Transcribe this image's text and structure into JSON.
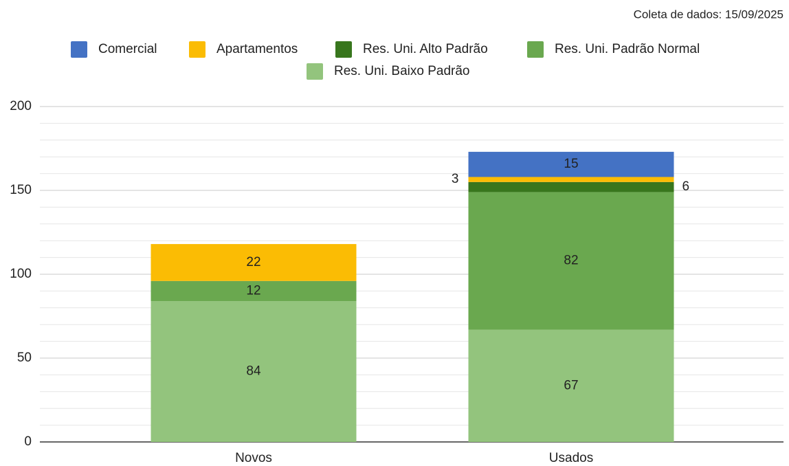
{
  "chart_data": {
    "type": "stacked_bar",
    "subtitle": "Coleta de dados: 15/09/2025",
    "categories": [
      "Novos",
      "Usados"
    ],
    "series": [
      {
        "name": "Comercial",
        "color": "#4472c4",
        "values": [
          null,
          15
        ]
      },
      {
        "name": "Apartamentos",
        "color": "#fbbc04",
        "values": [
          22,
          3
        ]
      },
      {
        "name": "Res. Uni. Alto Padrão",
        "color": "#38761d",
        "values": [
          null,
          6
        ]
      },
      {
        "name": "Res. Uni. Padrão Normal",
        "color": "#6aa84f",
        "values": [
          12,
          82
        ]
      },
      {
        "name": "Res. Uni. Baixo Padrão",
        "color": "#93c47d",
        "values": [
          84,
          67
        ]
      }
    ],
    "ylim": [
      0,
      200
    ],
    "yticks": [
      0,
      50,
      100,
      150,
      200
    ],
    "yticks_minor": [
      10,
      20,
      30,
      40,
      60,
      70,
      80,
      90,
      110,
      120,
      130,
      140,
      160,
      170,
      180,
      190
    ],
    "grid": true,
    "legend": "top"
  }
}
